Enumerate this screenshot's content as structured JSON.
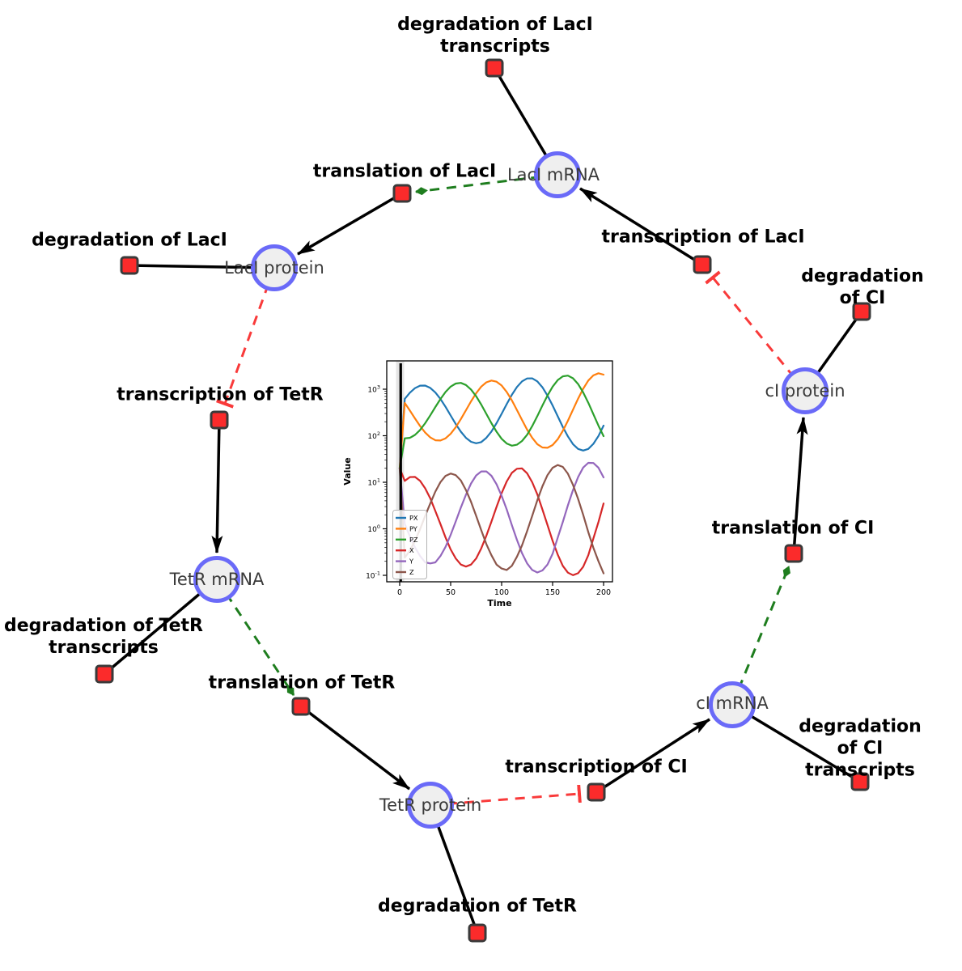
{
  "diagram": {
    "species": [
      {
        "label": "LacI mRNA"
      },
      {
        "label": "LacI protein"
      },
      {
        "label": "TetR mRNA"
      },
      {
        "label": "TetR protein"
      },
      {
        "label": "cI mRNA"
      },
      {
        "label": "cI protein"
      }
    ],
    "reactions": [
      {
        "label": "degradation of LacI\ntranscripts"
      },
      {
        "label": "translation of LacI"
      },
      {
        "label": "degradation of LacI"
      },
      {
        "label": "transcription of LacI"
      },
      {
        "label": "degradation of CI"
      },
      {
        "label": "transcription of TetR"
      },
      {
        "label": "translation of CI"
      },
      {
        "label": "degradation of TetR\ntranscripts"
      },
      {
        "label": "translation of TetR"
      },
      {
        "label": "transcription of CI"
      },
      {
        "label": "degradation of CI\ntranscripts"
      },
      {
        "label": "degradation of TetR"
      }
    ],
    "edges": [
      {
        "from": "LacI mRNA",
        "to": "degradation of LacI transcripts",
        "type": "plain"
      },
      {
        "from": "LacI mRNA",
        "to": "translation of LacI",
        "type": "activation"
      },
      {
        "from": "translation of LacI",
        "to": "LacI protein",
        "type": "arrow"
      },
      {
        "from": "LacI protein",
        "to": "degradation of LacI",
        "type": "plain"
      },
      {
        "from": "LacI protein",
        "to": "transcription of TetR",
        "type": "inhibition"
      },
      {
        "from": "transcription of TetR",
        "to": "TetR mRNA",
        "type": "arrow"
      },
      {
        "from": "TetR mRNA",
        "to": "degradation of TetR transcripts",
        "type": "plain"
      },
      {
        "from": "TetR mRNA",
        "to": "translation of TetR",
        "type": "activation"
      },
      {
        "from": "translation of TetR",
        "to": "TetR protein",
        "type": "arrow"
      },
      {
        "from": "TetR protein",
        "to": "degradation of TetR",
        "type": "plain"
      },
      {
        "from": "TetR protein",
        "to": "transcription of CI",
        "type": "inhibition"
      },
      {
        "from": "transcription of CI",
        "to": "cI mRNA",
        "type": "arrow"
      },
      {
        "from": "cI mRNA",
        "to": "degradation of CI transcripts",
        "type": "plain"
      },
      {
        "from": "cI mRNA",
        "to": "translation of CI",
        "type": "activation"
      },
      {
        "from": "translation of CI",
        "to": "cI protein",
        "type": "arrow"
      },
      {
        "from": "cI protein",
        "to": "degradation of CI",
        "type": "plain"
      },
      {
        "from": "cI protein",
        "to": "transcription of LacI",
        "type": "inhibition"
      },
      {
        "from": "transcription of LacI",
        "to": "LacI mRNA",
        "type": "arrow"
      }
    ],
    "colors": {
      "species_fill": "#efefef",
      "species_border": "#6a6af8",
      "reaction_fill": "#fb2b2b",
      "reaction_border": "#3a3a3a",
      "activation_edge": "#1e7d1e",
      "inhibition_edge": "#f93a3a",
      "plain_edge": "#000000"
    }
  },
  "chart_data": {
    "type": "line",
    "title": "",
    "xlabel": "Time",
    "ylabel": "Value",
    "x_ticks": [
      0,
      50,
      100,
      150,
      200
    ],
    "y_scale": "log",
    "y_tick_exponents": [
      -1,
      0,
      1,
      2,
      3
    ],
    "xlim": [
      -12,
      210
    ],
    "ylim": [
      0.07,
      3900
    ],
    "legend_position": "lower left",
    "grid": false,
    "initial_event_line_x": 1,
    "x": [
      0,
      5,
      10,
      15,
      20,
      25,
      30,
      35,
      40,
      45,
      50,
      55,
      60,
      65,
      70,
      75,
      80,
      85,
      90,
      95,
      100,
      105,
      110,
      115,
      120,
      125,
      130,
      135,
      140,
      145,
      150,
      155,
      160,
      165,
      170,
      175,
      180,
      185,
      190,
      195,
      200
    ],
    "series": [
      {
        "name": "PX",
        "color": "#1f77b4",
        "values": [
          20,
          621,
          842,
          1054,
          1191,
          1197,
          1067,
          849,
          615,
          417,
          272,
          178,
          122,
          90,
          74,
          69,
          73,
          90,
          123,
          186,
          296,
          478,
          755,
          1112,
          1472,
          1706,
          1710,
          1472,
          1099,
          729,
          447,
          262,
          155,
          97,
          66,
          52,
          48,
          52,
          67,
          99,
          165
        ]
      },
      {
        "name": "PY",
        "color": "#ff7f0e",
        "values": [
          20,
          506,
          348,
          236,
          162,
          117,
          92,
          80,
          79,
          88,
          110,
          153,
          228,
          353,
          549,
          818,
          1136,
          1405,
          1532,
          1452,
          1203,
          873,
          578,
          358,
          218,
          135,
          90,
          66,
          56,
          55,
          63,
          84,
          127,
          210,
          363,
          627,
          1026,
          1535,
          1986,
          2200,
          2055
        ]
      },
      {
        "name": "PZ",
        "color": "#2ca02c",
        "values": [
          20,
          88,
          90,
          104,
          133,
          186,
          274,
          414,
          615,
          871,
          1135,
          1324,
          1368,
          1233,
          984,
          705,
          467,
          295,
          186,
          122,
          86,
          68,
          61,
          64,
          77,
          105,
          161,
          264,
          445,
          731,
          1130,
          1566,
          1892,
          1959,
          1718,
          1294,
          853,
          512,
          290,
          164,
          98
        ]
      },
      {
        "name": "X",
        "color": "#d62728",
        "values": [
          20,
          10.7,
          12.9,
          13.0,
          10.7,
          7.4,
          4.5,
          2.4,
          1.26,
          0.65,
          0.36,
          0.23,
          0.17,
          0.154,
          0.17,
          0.23,
          0.38,
          0.71,
          1.43,
          2.95,
          5.85,
          10.4,
          15.9,
          19.5,
          19.8,
          15.6,
          10.0,
          5.5,
          2.6,
          1.2,
          0.55,
          0.28,
          0.16,
          0.114,
          0.101,
          0.111,
          0.153,
          0.27,
          0.62,
          1.4,
          3.5
        ]
      },
      {
        "name": "Y",
        "color": "#9467bd",
        "values": [
          20,
          1.27,
          0.69,
          0.4,
          0.26,
          0.19,
          0.18,
          0.19,
          0.26,
          0.41,
          0.74,
          1.44,
          2.85,
          5.4,
          9.4,
          14.0,
          17.1,
          17.1,
          13.8,
          9.1,
          5.1,
          2.6,
          1.2,
          0.58,
          0.3,
          0.18,
          0.13,
          0.115,
          0.127,
          0.17,
          0.29,
          0.64,
          1.4,
          3.2,
          6.8,
          12.9,
          20.7,
          26.1,
          25.9,
          20.5,
          12.7
        ]
      },
      {
        "name": "Z",
        "color": "#8c564b",
        "values": [
          20,
          0.24,
          0.34,
          0.55,
          0.98,
          1.9,
          3.5,
          6.3,
          10.1,
          13.7,
          15.4,
          14.2,
          10.9,
          6.8,
          3.8,
          1.9,
          0.93,
          0.47,
          0.27,
          0.17,
          0.14,
          0.13,
          0.16,
          0.25,
          0.44,
          0.89,
          1.9,
          4.1,
          8.2,
          14.3,
          20.5,
          23.5,
          21.4,
          15.3,
          8.8,
          4.4,
          2.0,
          0.85,
          0.39,
          0.2,
          0.11
        ]
      }
    ]
  }
}
